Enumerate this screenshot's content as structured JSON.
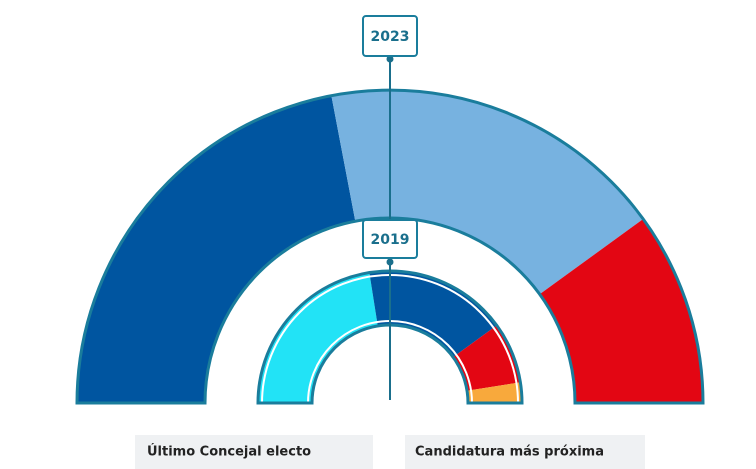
{
  "chart_data": {
    "type": "semicircle",
    "series": [
      {
        "name": "2023",
        "colors": [
          "#0055a0",
          "#77b2e0",
          "#e30613"
        ],
        "values": [
          11,
          9,
          5
        ]
      },
      {
        "name": "2019",
        "colors": [
          "#22e3f6",
          "#0055a0",
          "#e30613",
          "#f8a93c"
        ],
        "values": [
          9,
          7,
          3,
          1
        ]
      }
    ]
  },
  "panels": [
    {
      "title": "Último Concejal electo"
    },
    {
      "title": "Candidatura más próxima"
    }
  ]
}
